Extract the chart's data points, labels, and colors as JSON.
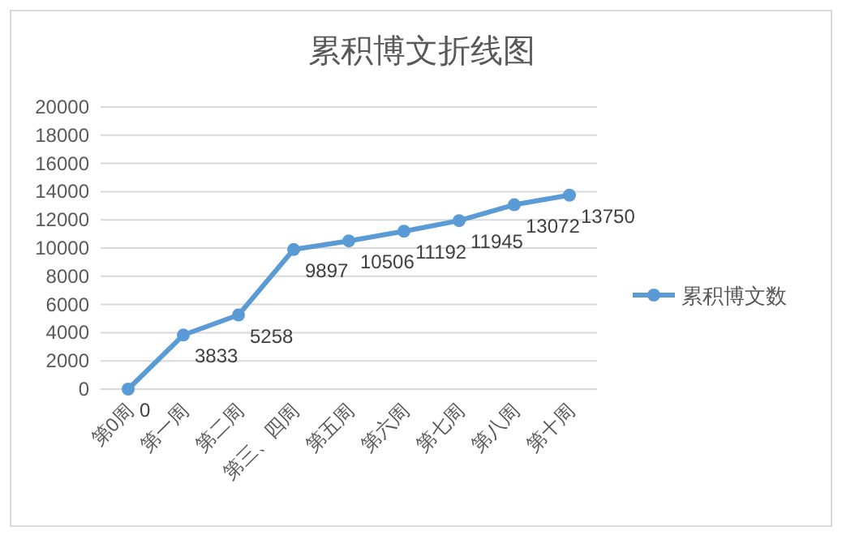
{
  "chart_data": {
    "type": "line",
    "title": "累积博文折线图",
    "categories": [
      "第0周",
      "第一周",
      "第二周",
      "第三、四周",
      "第五周",
      "第六周",
      "第七周",
      "第八周",
      "第十周"
    ],
    "series": [
      {
        "name": "累积博文数",
        "color": "#5b9bd5",
        "values": [
          0,
          3833,
          5258,
          9897,
          10506,
          11192,
          11945,
          13072,
          13750
        ]
      }
    ],
    "ylim": [
      0,
      20000
    ],
    "yticks": [
      0,
      2000,
      4000,
      6000,
      8000,
      10000,
      12000,
      14000,
      16000,
      18000,
      20000
    ],
    "grid": "y",
    "legend": "right",
    "marker": "circle",
    "line_style": "solid",
    "data_labels": true
  }
}
